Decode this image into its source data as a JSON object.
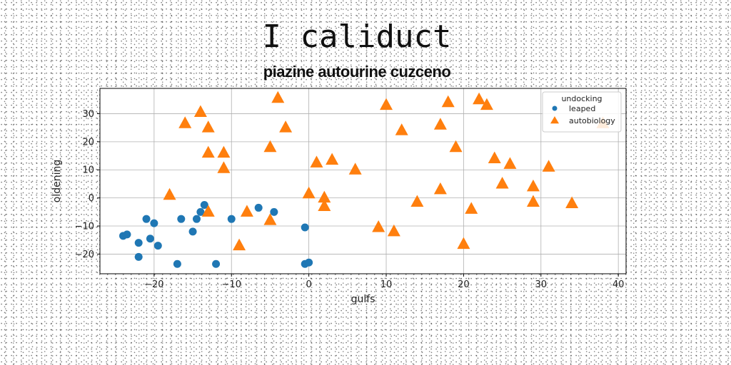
{
  "title": "I caliduct",
  "subtitle": "piazine autourine cuzceno",
  "colors": {
    "series_a": "#1f77b4",
    "series_b": "#ff7f0e",
    "grid": "#b0b0b0"
  },
  "chart_data": {
    "type": "scatter",
    "xlabel": "gulfs",
    "ylabel": "oldening",
    "xlim": [
      -27,
      41
    ],
    "ylim": [
      -27,
      39
    ],
    "xticks": [
      -20,
      -10,
      0,
      10,
      20,
      30,
      40
    ],
    "yticks": [
      -20,
      -10,
      0,
      10,
      20,
      30
    ],
    "xtick_labels": [
      "−20",
      "−10",
      "0",
      "10",
      "20",
      "30",
      "40"
    ],
    "ytick_labels": [
      "−20",
      "−10",
      "0",
      "10",
      "20",
      "30"
    ],
    "grid": true,
    "legend": {
      "title": "undocking",
      "placement": "top-right"
    },
    "series": [
      {
        "name": "leaped",
        "marker": "circle",
        "color": "#1f77b4",
        "points": [
          [
            -24,
            -13.5
          ],
          [
            -23.5,
            -13
          ],
          [
            -22,
            -16
          ],
          [
            -22,
            -21
          ],
          [
            -21,
            -7.5
          ],
          [
            -20,
            -9
          ],
          [
            -20.5,
            -14.5
          ],
          [
            -19.5,
            -17
          ],
          [
            -17,
            -23.5
          ],
          [
            -16.5,
            -7.5
          ],
          [
            -15,
            -12
          ],
          [
            -14.5,
            -7.5
          ],
          [
            -14,
            -5
          ],
          [
            -13.5,
            -2.5
          ],
          [
            -12,
            -23.5
          ],
          [
            -10,
            -7.5
          ],
          [
            -6.5,
            -3.5
          ],
          [
            -4.5,
            -5
          ],
          [
            -0.5,
            -10.5
          ],
          [
            -0.5,
            -23.5
          ],
          [
            0,
            -23
          ]
        ]
      },
      {
        "name": "autobiology",
        "marker": "triangle",
        "color": "#ff7f0e",
        "points": [
          [
            -18,
            1
          ],
          [
            -16,
            26.5
          ],
          [
            -14,
            30.5
          ],
          [
            -13,
            25
          ],
          [
            -13,
            16
          ],
          [
            -13,
            -5
          ],
          [
            -11,
            16
          ],
          [
            -11,
            10.5
          ],
          [
            -9,
            -17
          ],
          [
            -8,
            -5
          ],
          [
            -5,
            18
          ],
          [
            -5,
            -8
          ],
          [
            -4,
            35.5
          ],
          [
            -3,
            25
          ],
          [
            0,
            1.5
          ],
          [
            1,
            12.5
          ],
          [
            2,
            0
          ],
          [
            2,
            -3
          ],
          [
            3,
            13.5
          ],
          [
            6,
            10
          ],
          [
            9,
            -10.5
          ],
          [
            10,
            33
          ],
          [
            11,
            -12
          ],
          [
            12,
            24
          ],
          [
            14,
            -1.5
          ],
          [
            17,
            26
          ],
          [
            17,
            3
          ],
          [
            18,
            34
          ],
          [
            19,
            18
          ],
          [
            20,
            -16.5
          ],
          [
            21,
            -4
          ],
          [
            22,
            35
          ],
          [
            23,
            33
          ],
          [
            24,
            14
          ],
          [
            25,
            5
          ],
          [
            26,
            12
          ],
          [
            29,
            4
          ],
          [
            29,
            -1.5
          ],
          [
            31,
            11
          ],
          [
            34,
            -2
          ],
          [
            38,
            26.5
          ]
        ]
      }
    ]
  }
}
